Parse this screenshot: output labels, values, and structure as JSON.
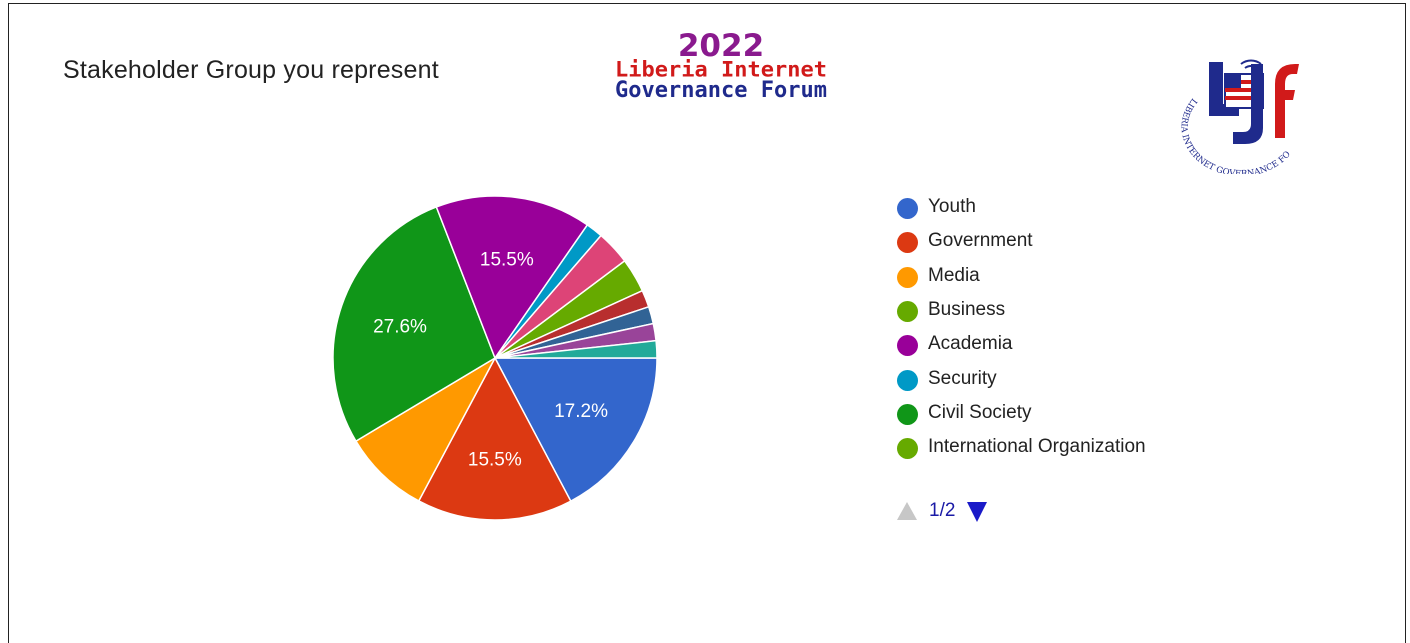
{
  "chart_data": {
    "type": "pie",
    "title": "Stakeholder Group you represent",
    "slices": [
      {
        "label": "Youth",
        "value": 17.2,
        "color": "#3366cc",
        "show_label": true
      },
      {
        "label": "Government",
        "value": 15.5,
        "color": "#dc3912",
        "show_label": true
      },
      {
        "label": "Media",
        "value": 8.6,
        "color": "#ff9900",
        "show_label": false
      },
      {
        "label": "Civil Society",
        "value": 27.6,
        "color": "#109618",
        "show_label": true
      },
      {
        "label": "Academia",
        "value": 15.5,
        "color": "#990099",
        "show_label": true
      },
      {
        "label": "Security",
        "value": 1.7,
        "color": "#0099c6",
        "show_label": false
      },
      {
        "label": "",
        "value": 3.4,
        "color": "#dd4477",
        "show_label": false
      },
      {
        "label": "International Organization",
        "value": 3.4,
        "color": "#66aa00",
        "show_label": false
      },
      {
        "label": "",
        "value": 1.7,
        "color": "#b82e2e",
        "show_label": false
      },
      {
        "label": "",
        "value": 1.7,
        "color": "#316395",
        "show_label": false
      },
      {
        "label": "",
        "value": 1.7,
        "color": "#994499",
        "show_label": false
      },
      {
        "label": "",
        "value": 1.7,
        "color": "#22aa99",
        "show_label": false
      }
    ],
    "legend_position": "right"
  },
  "legend": {
    "items": [
      {
        "label": "Youth",
        "color": "#3366cc"
      },
      {
        "label": "Government",
        "color": "#dc3912"
      },
      {
        "label": "Media",
        "color": "#ff9900"
      },
      {
        "label": "Business",
        "color": "#66aa00"
      },
      {
        "label": "Academia",
        "color": "#990099"
      },
      {
        "label": "Security",
        "color": "#0099c6"
      },
      {
        "label": "Civil Society",
        "color": "#109618"
      },
      {
        "label": "International Organization",
        "color": "#66aa00"
      }
    ],
    "pager": {
      "label": "1/2"
    }
  },
  "banner": {
    "year": "2022",
    "line2": "Liberia Internet",
    "line3": "Governance Forum"
  },
  "logo": {
    "ring_text": "LIBERIA INTERNET GOVERNANCE FORUM"
  }
}
